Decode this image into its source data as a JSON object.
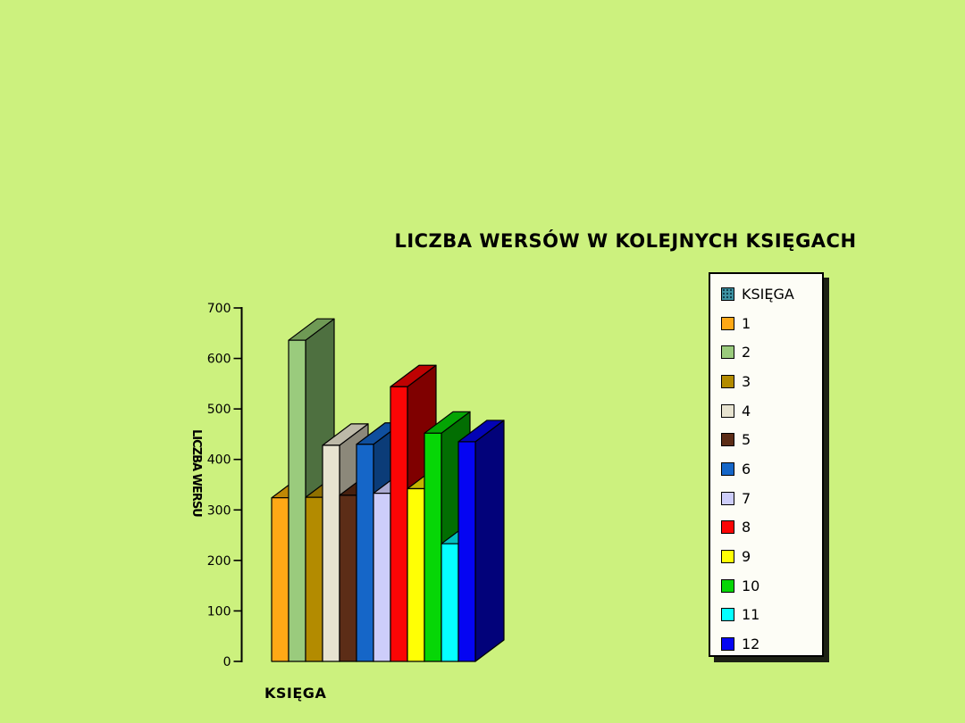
{
  "page": {
    "background_color": "#CCF17E"
  },
  "chart_data": {
    "type": "bar",
    "style": "3d-column",
    "title": "LICZBA WERSÓW W KOLEJNYCH KSIĘGACH",
    "xlabel": "KSIĘGA",
    "ylabel": "LICZBA WERSU",
    "categories": [
      "1",
      "2",
      "3",
      "4",
      "5",
      "6",
      "7",
      "8",
      "9",
      "10",
      "11",
      "12"
    ],
    "values": [
      324,
      636,
      325,
      428,
      329,
      430,
      333,
      544,
      342,
      452,
      233,
      435
    ],
    "ylim": [
      0,
      700
    ],
    "y_ticks": [
      0,
      100,
      200,
      300,
      400,
      500,
      600,
      700
    ],
    "grid": "off",
    "legend": {
      "position": "right",
      "series_label": "KSIĘGA",
      "series_swatch_color": "#3E93A3"
    },
    "bar_colors": [
      {
        "front": "#FFA816",
        "side": "#A66E00",
        "top": "#C08806"
      },
      {
        "front": "#9ACB7D",
        "side": "#4E7040",
        "top": "#6F9A55"
      },
      {
        "front": "#B38B00",
        "side": "#715800",
        "top": "#8F7000"
      },
      {
        "front": "#E7E3D0",
        "side": "#8C887A",
        "top": "#BDB9A8"
      },
      {
        "front": "#5C2D17",
        "side": "#36180C",
        "top": "#47200F"
      },
      {
        "front": "#1566C8",
        "side": "#0B3C78",
        "top": "#0F4F9E"
      },
      {
        "front": "#CDCDFA",
        "side": "#8484AC",
        "top": "#ABABD2"
      },
      {
        "front": "#FB0505",
        "side": "#7F0000",
        "top": "#BE0202"
      },
      {
        "front": "#FFFF05",
        "side": "#7F7F00",
        "top": "#C4B400"
      },
      {
        "front": "#06D606",
        "side": "#026E02",
        "top": "#04A404"
      },
      {
        "front": "#05FFFF",
        "side": "#028080",
        "top": "#03BFBF"
      },
      {
        "front": "#0505F2",
        "side": "#02027A",
        "top": "#0303B4"
      }
    ],
    "axis_color": "#000000"
  }
}
